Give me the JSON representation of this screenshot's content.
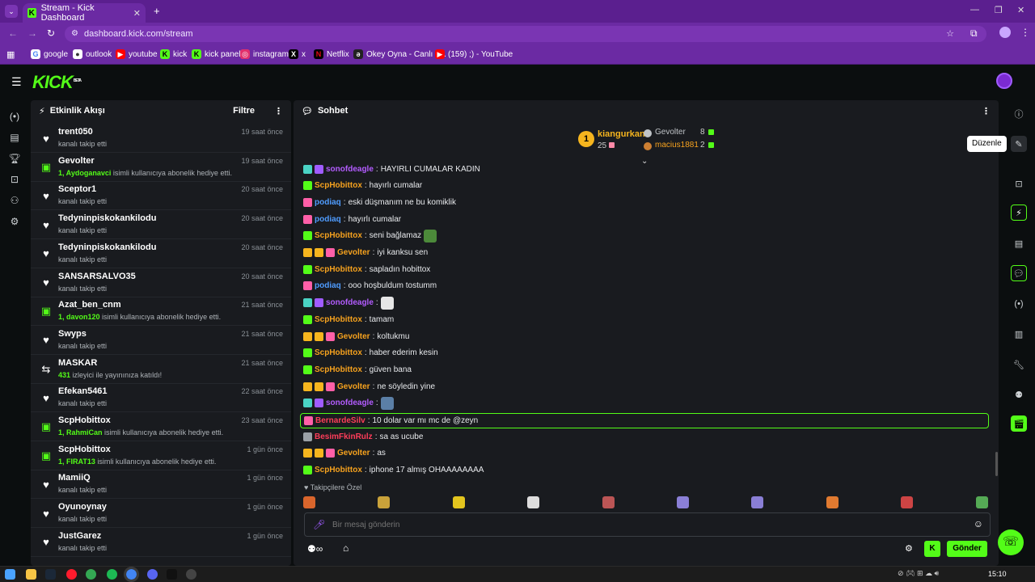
{
  "browser": {
    "tab_title": "Stream - Kick Dashboard",
    "url": "dashboard.kick.com/stream",
    "bookmarks": [
      "google",
      "outlook",
      "youtube",
      "kick",
      "kick panel",
      "instagram",
      "x",
      "Netflix",
      "Okey Oyna - Canlı 1...",
      "(159) ;) - YouTube"
    ]
  },
  "app": {
    "logo": "KICK",
    "logo_beta": "BETA",
    "activity": {
      "title": "Etkinlik Akışı",
      "filter": "Filtre",
      "items": [
        {
          "name": "trent050",
          "desc": "kanalı takip etti",
          "time": "19 saat önce",
          "type": "follow"
        },
        {
          "name": "Gevolter",
          "hl": "1, Aydoganavci",
          "desc": "isimli kullanıcıya abonelik hediye etti.",
          "time": "19 saat önce",
          "type": "gift"
        },
        {
          "name": "Sceptor1",
          "desc": "kanalı takip etti",
          "time": "20 saat önce",
          "type": "follow"
        },
        {
          "name": "Tedyninpiskokankilodu",
          "desc": "kanalı takip etti",
          "time": "20 saat önce",
          "type": "follow"
        },
        {
          "name": "Tedyninpiskokankilodu",
          "desc": "kanalı takip etti",
          "time": "20 saat önce",
          "type": "follow"
        },
        {
          "name": "SANSARSALVO35",
          "desc": "kanalı takip etti",
          "time": "20 saat önce",
          "type": "follow"
        },
        {
          "name": "Azat_ben_cnm",
          "hl": "1, davon120",
          "desc": "isimli kullanıcıya abonelik hediye etti.",
          "time": "21 saat önce",
          "type": "gift"
        },
        {
          "name": "Swyps",
          "desc": "kanalı takip etti",
          "time": "21 saat önce",
          "type": "follow"
        },
        {
          "name": "MASKAR",
          "hl": "431",
          "desc": "izleyici ile yayınınıza katıldı!",
          "time": "21 saat önce",
          "type": "raid"
        },
        {
          "name": "Efekan5461",
          "desc": "kanalı takip etti",
          "time": "22 saat önce",
          "type": "follow"
        },
        {
          "name": "ScpHobittox",
          "hl": "1, RahmiCan",
          "desc": "isimli kullanıcıya abonelik hediye etti.",
          "time": "23 saat önce",
          "type": "gift"
        },
        {
          "name": "ScpHobittox",
          "hl": "1, FIRAT13",
          "desc": "isimli kullanıcıya abonelik hediye etti.",
          "time": "1 gün önce",
          "type": "gift"
        },
        {
          "name": "MamiiQ",
          "desc": "kanalı takip etti",
          "time": "1 gün önce",
          "type": "follow"
        },
        {
          "name": "Oyunoynay",
          "desc": "kanalı takip etti",
          "time": "1 gün önce",
          "type": "follow"
        },
        {
          "name": "JustGarez",
          "desc": "kanalı takip etti",
          "time": "1 gün önce",
          "type": "follow"
        }
      ]
    },
    "chat": {
      "title": "Sohbet",
      "leaderboard": {
        "first": {
          "name": "kiangurkan",
          "count": "25",
          "rank": "1"
        },
        "second": {
          "name": "Gevolter",
          "count": "8"
        },
        "third": {
          "name": "macius1881",
          "count": "2"
        }
      },
      "messages": [
        {
          "user": "sonofdeagle",
          "color": "#b35cff",
          "text": "HAYIRLI CUMALAR KADIN",
          "badges": [
            "teal",
            "purple"
          ]
        },
        {
          "user": "ScpHobittox",
          "color": "#f6a21e",
          "text": "hayırlı cumalar",
          "badges": [
            "green"
          ]
        },
        {
          "user": "podiaq",
          "color": "#4f9cff",
          "text": "eski düşmanım ne bu komiklik",
          "badges": [
            "pink"
          ]
        },
        {
          "user": "podiaq",
          "color": "#4f9cff",
          "text": "hayırlı cumalar",
          "badges": [
            "pink"
          ]
        },
        {
          "user": "ScpHobittox",
          "color": "#f6a21e",
          "text": "seni bağlamaz",
          "badges": [
            "green"
          ],
          "emote": "#4c8a3a"
        },
        {
          "user": "Gevolter",
          "color": "#f6a21e",
          "text": "iyi kanksu sen",
          "badges": [
            "gold",
            "gold",
            "pink"
          ]
        },
        {
          "user": "ScpHobittox",
          "color": "#f6a21e",
          "text": "sapladın hobittox",
          "badges": [
            "green"
          ]
        },
        {
          "user": "podiaq",
          "color": "#4f9cff",
          "text": "ooo hoşbuldum tostumm",
          "badges": [
            "pink"
          ]
        },
        {
          "user": "sonofdeagle",
          "color": "#b35cff",
          "text": "",
          "badges": [
            "teal",
            "purple"
          ],
          "emote": "#e6e6e6"
        },
        {
          "user": "ScpHobittox",
          "color": "#f6a21e",
          "text": "tamam",
          "badges": [
            "green"
          ]
        },
        {
          "user": "Gevolter",
          "color": "#f6a21e",
          "text": "koltukmu",
          "badges": [
            "gold",
            "gold",
            "pink"
          ]
        },
        {
          "user": "ScpHobittox",
          "color": "#f6a21e",
          "text": "haber ederim kesin",
          "badges": [
            "green"
          ]
        },
        {
          "user": "ScpHobittox",
          "color": "#f6a21e",
          "text": "güven bana",
          "badges": [
            "green"
          ]
        },
        {
          "user": "Gevolter",
          "color": "#f6a21e",
          "text": "ne söyledin yine",
          "badges": [
            "gold",
            "gold",
            "pink"
          ]
        },
        {
          "user": "sonofdeagle",
          "color": "#b35cff",
          "text": "",
          "badges": [
            "teal",
            "purple"
          ],
          "emote": "#5b7fa6"
        },
        {
          "user": "BernardeSilv",
          "color": "#ff3d5a",
          "text": "10 dolar var mı mc de @zeyn",
          "badges": [
            "pink"
          ],
          "highlight": true
        },
        {
          "user": "BesimFkinRulz",
          "color": "#ff3d5a",
          "text": "sa as ucube",
          "badges": [
            "grey"
          ]
        },
        {
          "user": "Gevolter",
          "color": "#f6a21e",
          "text": "as",
          "badges": [
            "gold",
            "gold",
            "pink"
          ]
        },
        {
          "user": "ScpHobittox",
          "color": "#f6a21e",
          "text": "iphone 17 almış OHAAAAAAAA",
          "badges": [
            "green"
          ]
        }
      ],
      "followers_only": "Takipçilere Özel",
      "input_placeholder": "Bir mesaj gönderin",
      "send": "Gönder"
    },
    "tooltip": "Düzenle"
  },
  "taskbar": {
    "time": "15:10"
  },
  "colors": {
    "accent": "#53fc18",
    "browser": "#6b2aa3",
    "panel": "#191b1f"
  }
}
